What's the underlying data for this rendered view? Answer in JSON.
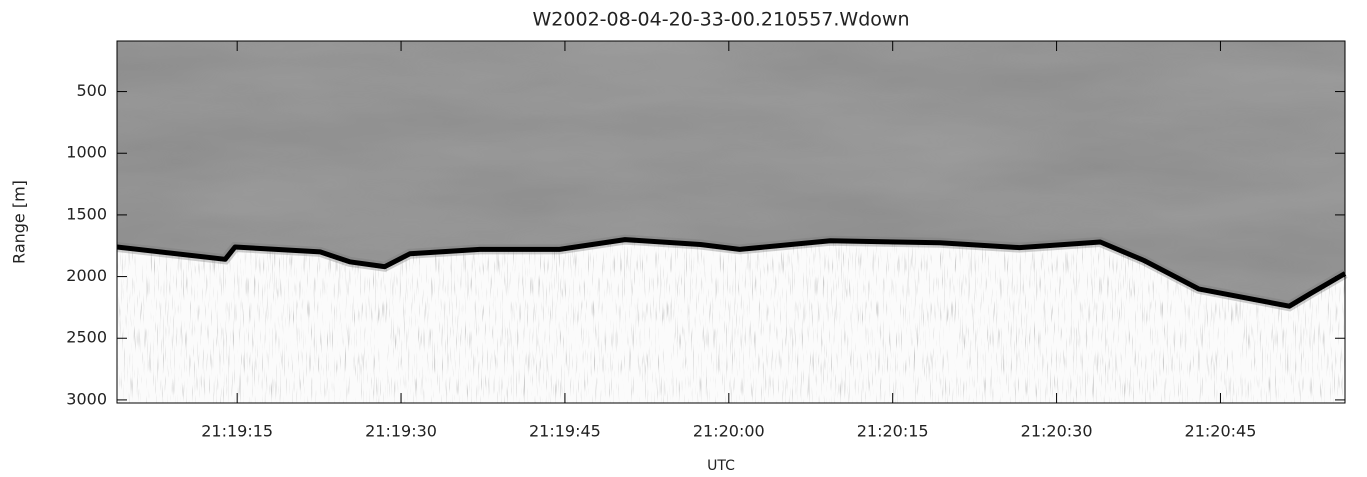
{
  "chart_data": {
    "type": "line",
    "title": "W2002-08-04-20-33-00.210557.Wdown",
    "xlabel": "UTC",
    "ylabel": "Range [m]",
    "x": [
      4,
      13.9,
      14.8,
      22.6,
      25.3,
      28.5,
      30.8,
      37.2,
      44.5,
      50.5,
      57.4,
      61,
      69.3,
      79.3,
      86.6,
      94,
      98,
      103,
      111.3,
      113.2,
      116.4
    ],
    "series": [
      {
        "color": "#000000",
        "values": [
          1760,
          1860,
          1760,
          1800,
          1880,
          1920,
          1815,
          1780,
          1780,
          1700,
          1740,
          1780,
          1710,
          1725,
          1765,
          1720,
          1870,
          2100,
          2240,
          2140,
          1975
        ]
      }
    ],
    "xlim": [
      4,
      116.4
    ],
    "xticks": [
      {
        "value": 15,
        "label": "21:19:15"
      },
      {
        "value": 30,
        "label": "21:19:30"
      },
      {
        "value": 45,
        "label": "21:19:45"
      },
      {
        "value": 60,
        "label": "21:20:00"
      },
      {
        "value": 75,
        "label": "21:20:15"
      },
      {
        "value": 90,
        "label": "21:20:30"
      },
      {
        "value": 105,
        "label": "21:20:45"
      }
    ],
    "ylim": [
      3025,
      90
    ],
    "yticks": [
      500,
      1000,
      1500,
      2000,
      2500,
      3000
    ]
  }
}
